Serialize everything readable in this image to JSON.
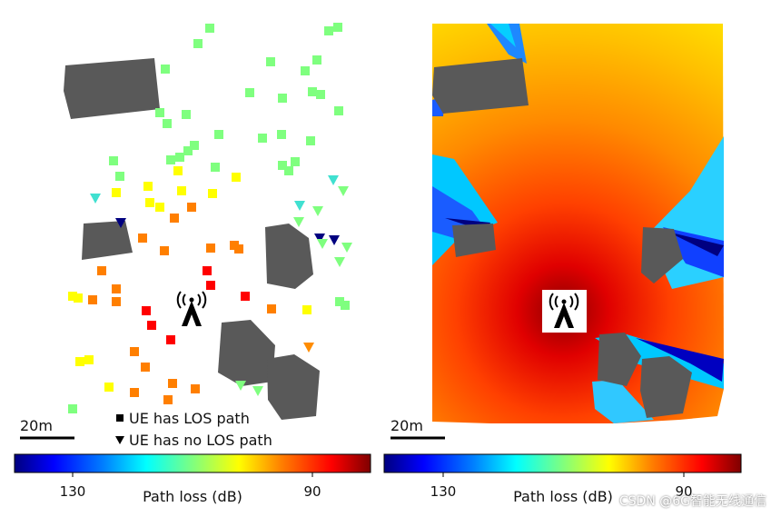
{
  "chart_data": [
    {
      "type": "scatter",
      "title": "",
      "xlabel": "",
      "ylabel": "",
      "legend": {
        "placement": "bottom-center",
        "entries": [
          {
            "marker": "square",
            "label": "UE has LOS path"
          },
          {
            "marker": "triangle-down",
            "label": "UE has no LOS path"
          }
        ]
      },
      "scale_bar": "20m",
      "colorbar": {
        "label": "Path loss (dB)",
        "tick_labels": [
          "130",
          "90"
        ],
        "colormap": "jet",
        "colormap_stops": [
          "#00007f",
          "#0000ff",
          "#007fff",
          "#00ffff",
          "#7fff7f",
          "#ffff00",
          "#ff7f00",
          "#ff0000",
          "#7f0000"
        ]
      },
      "base_station_icon": "antenna-icon",
      "building_color": "#595959",
      "grid": false
    },
    {
      "type": "heatmap",
      "title": "",
      "xlabel": "",
      "ylabel": "",
      "scale_bar": "20m",
      "colorbar": {
        "label": "Path loss (dB)",
        "tick_labels": [
          "130",
          "90"
        ],
        "colormap": "jet"
      },
      "base_station_icon": "antenna-icon",
      "building_color": "#595959",
      "grid": false
    }
  ],
  "watermark": "CSDN @6G智能无线通信"
}
